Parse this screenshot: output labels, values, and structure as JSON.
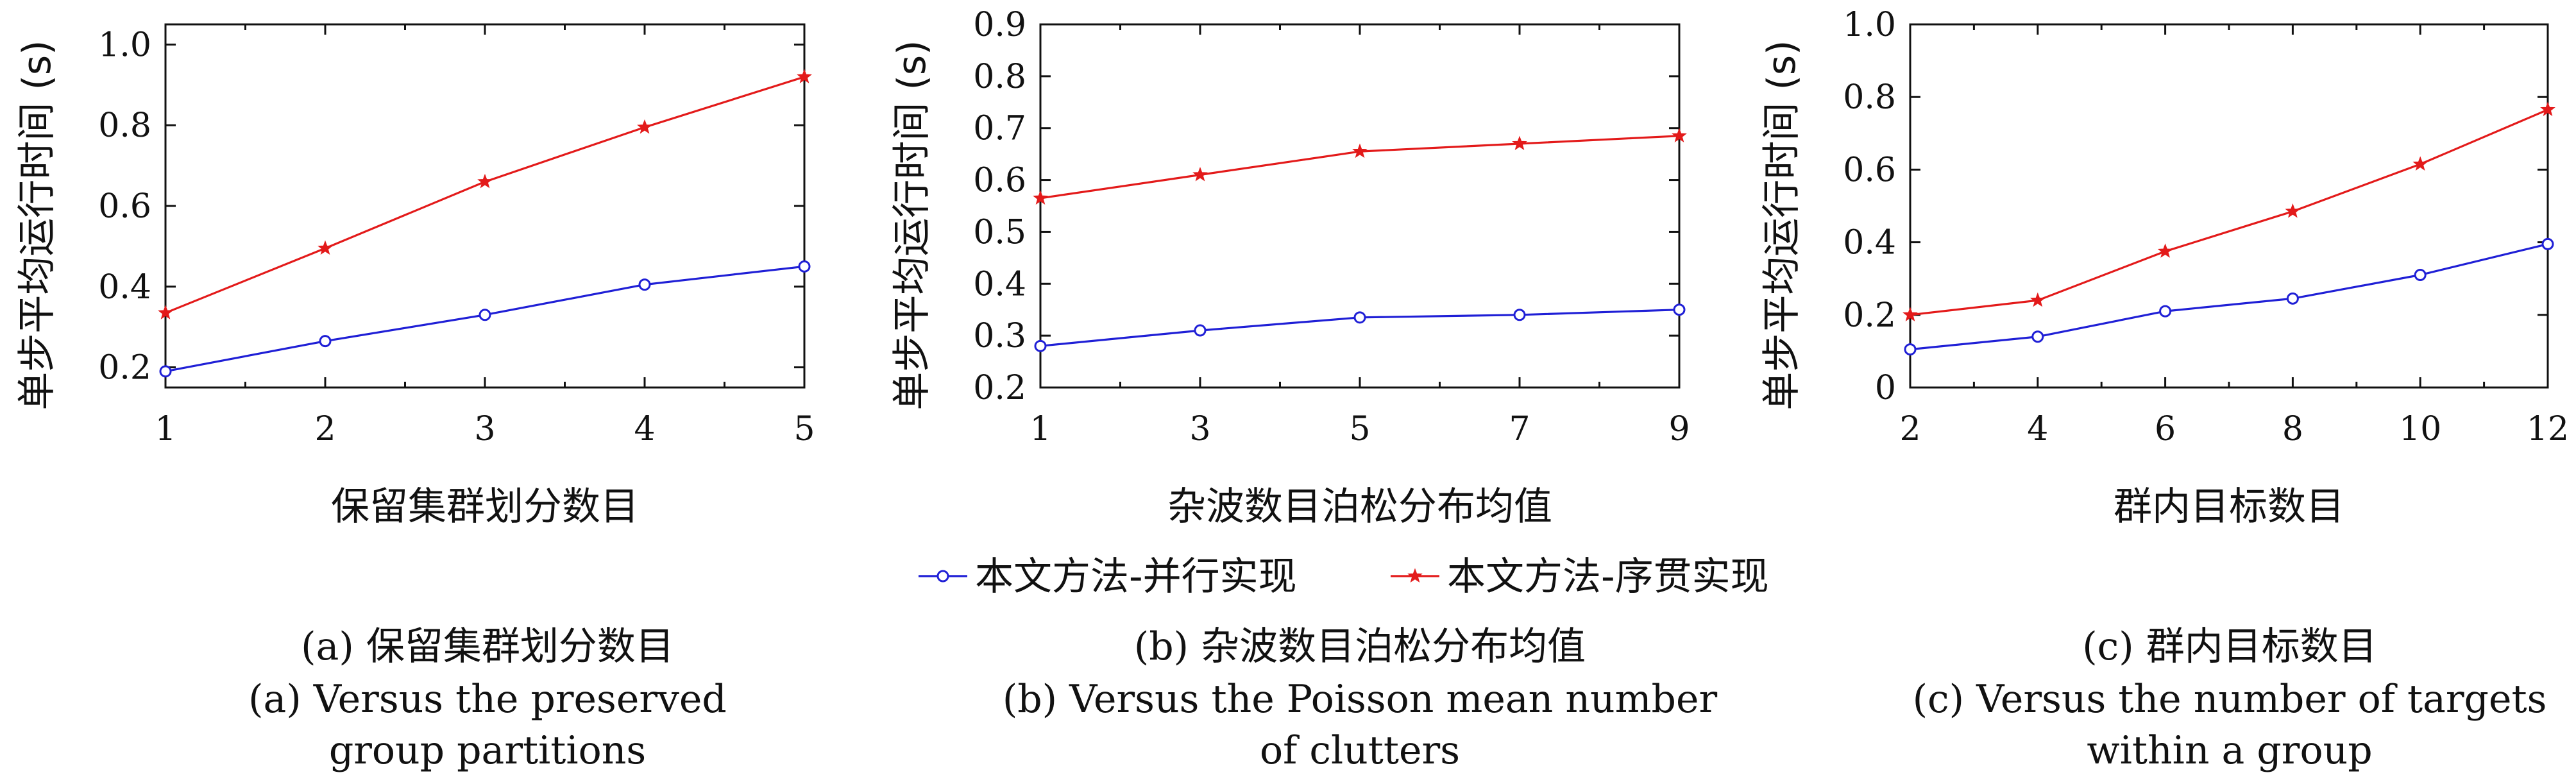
{
  "legend": {
    "parallel": "本文方法-并行实现",
    "serial": "本文方法-序贯实现"
  },
  "colors": {
    "parallel": "#1f1fd6",
    "serial": "#e31a1a"
  },
  "chart_data": [
    {
      "type": "line",
      "x": [
        1,
        2,
        3,
        4,
        5
      ],
      "x_ticks": [
        "1",
        "2",
        "3",
        "4",
        "5"
      ],
      "xlabel": "保留集群划分数目",
      "ylabel": "单步平均运行时间 (s)",
      "ylim": [
        0.15,
        1.05
      ],
      "y_ticks": [
        "0.2",
        "0.4",
        "0.6",
        "0.8",
        "1.0"
      ],
      "series": [
        {
          "name": "本文方法-并行实现",
          "values": [
            0.19,
            0.265,
            0.33,
            0.405,
            0.45
          ]
        },
        {
          "name": "本文方法-序贯实现",
          "values": [
            0.335,
            0.495,
            0.66,
            0.795,
            0.92
          ]
        }
      ],
      "caption_cn": "(a) 保留集群划分数目",
      "caption_en_1": "(a) Versus the preserved",
      "caption_en_2": "group partitions"
    },
    {
      "type": "line",
      "x": [
        1,
        3,
        5,
        7,
        9
      ],
      "x_ticks": [
        "1",
        "3",
        "5",
        "7",
        "9"
      ],
      "xlabel": "杂波数目泊松分布均值",
      "ylabel": "单步平均运行时间 (s)",
      "ylim": [
        0.2,
        0.9
      ],
      "y_ticks": [
        "0.2",
        "0.3",
        "0.4",
        "0.5",
        "0.6",
        "0.7",
        "0.8",
        "0.9"
      ],
      "series": [
        {
          "name": "本文方法-并行实现",
          "values": [
            0.28,
            0.31,
            0.335,
            0.34,
            0.35
          ]
        },
        {
          "name": "本文方法-序贯实现",
          "values": [
            0.565,
            0.61,
            0.655,
            0.67,
            0.685
          ]
        }
      ],
      "caption_cn": "(b) 杂波数目泊松分布均值",
      "caption_en_1": "(b) Versus the Poisson mean number",
      "caption_en_2": "of clutters"
    },
    {
      "type": "line",
      "x": [
        2,
        4,
        6,
        8,
        10,
        12
      ],
      "x_ticks": [
        "2",
        "4",
        "6",
        "8",
        "10",
        "12"
      ],
      "xlabel": "群内目标数目",
      "ylabel": "单步平均运行时间 (s)",
      "ylim": [
        0,
        1.0
      ],
      "y_ticks": [
        "0",
        "0.2",
        "0.4",
        "0.6",
        "0.8",
        "1.0"
      ],
      "series": [
        {
          "name": "本文方法-并行实现",
          "values": [
            0.105,
            0.14,
            0.21,
            0.245,
            0.31,
            0.395
          ]
        },
        {
          "name": "本文方法-序贯实现",
          "values": [
            0.2,
            0.24,
            0.375,
            0.485,
            0.615,
            0.765
          ]
        }
      ],
      "caption_cn": "(c) 群内目标数目",
      "caption_en_1": "(c) Versus the number of targets",
      "caption_en_2": "within a group"
    }
  ]
}
